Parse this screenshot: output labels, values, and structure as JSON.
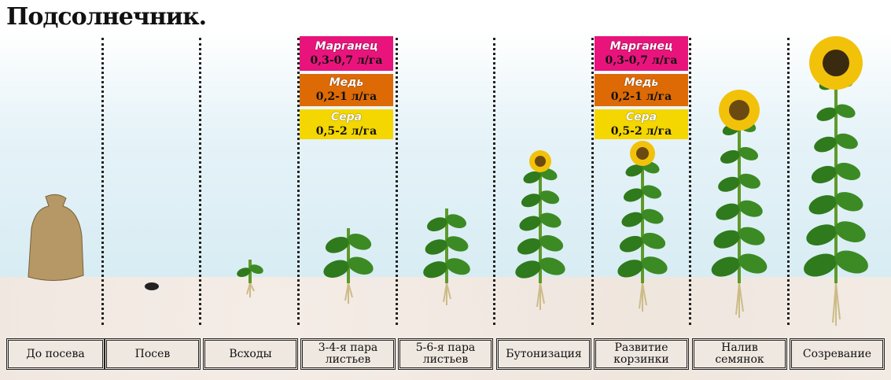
{
  "title": "Подсолнечник.",
  "stages": [
    "До посева",
    "Посев",
    "Всходы",
    "3-4-я пара\nлистьев",
    "5-6-я пара\nлистьев",
    "Бутонизация",
    "Развитие\nкорзинки",
    "Налив\nсемянок",
    "Созревание"
  ],
  "treatments": [
    {
      "stage": "3-4-я пара листьев",
      "items": [
        {
          "name": "Марганец",
          "dose": "0,3-0,7 л/га",
          "color": "#e8147c"
        },
        {
          "name": "Медь",
          "dose": "0,2-1 л/га",
          "color": "#dd6a05"
        },
        {
          "name": "Сера",
          "dose": "0,5-2 л/га",
          "color": "#f4d600"
        }
      ]
    },
    {
      "stage": "Развитие корзинки",
      "items": [
        {
          "name": "Марганец",
          "dose": "0,3-0,7 л/га",
          "color": "#e8147c"
        },
        {
          "name": "Медь",
          "dose": "0,2-1 л/га",
          "color": "#dd6a05"
        },
        {
          "name": "Сера",
          "dose": "0,5-2 л/га",
          "color": "#f4d600"
        }
      ]
    }
  ]
}
